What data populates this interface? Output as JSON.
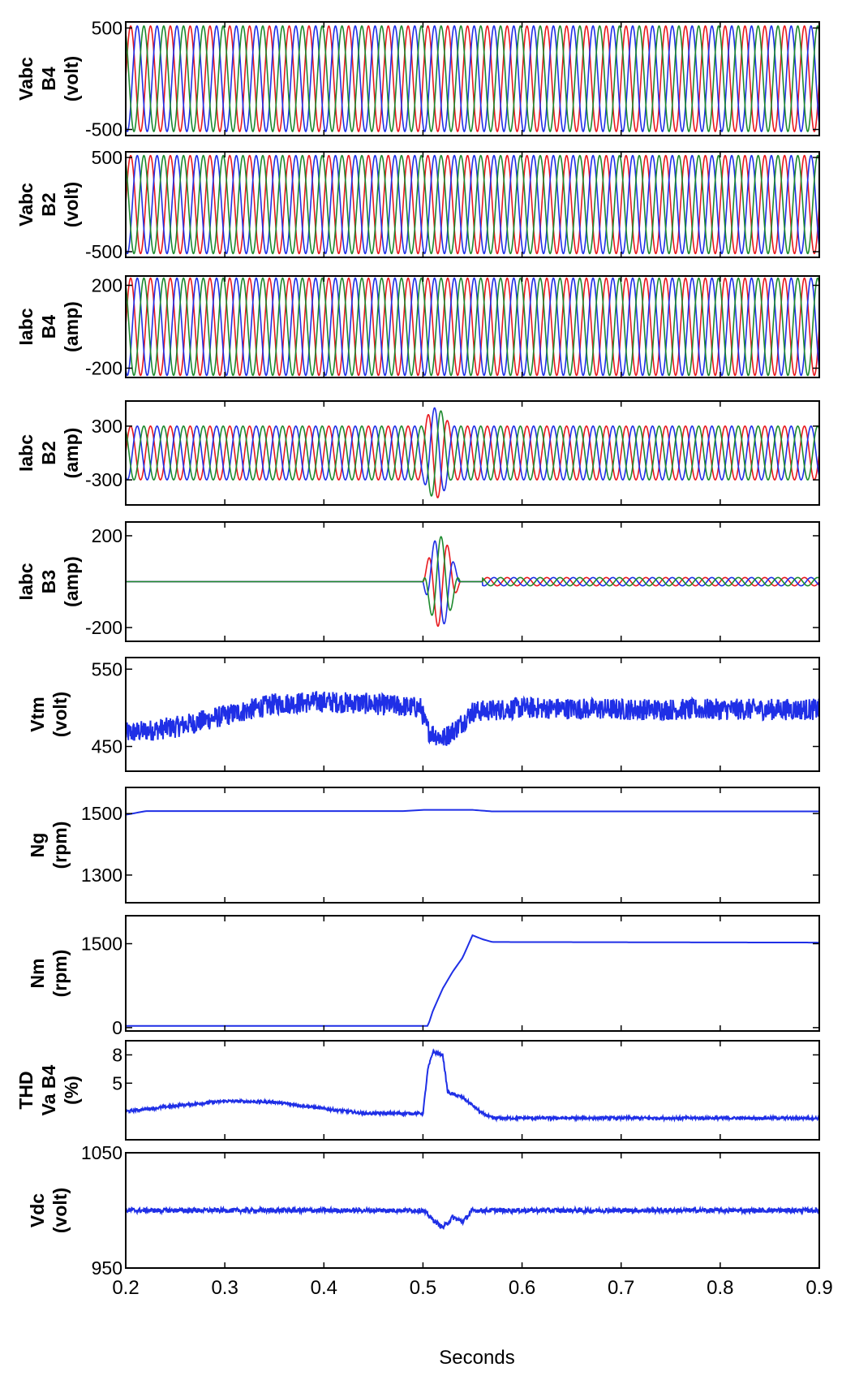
{
  "chart_data": {
    "type": "line",
    "xlabel": "Seconds",
    "xlim": [
      0.2,
      0.9
    ],
    "xticks": [
      "0.2",
      "0.3",
      "0.4",
      "0.5",
      "0.6",
      "0.7",
      "0.8",
      "0.9"
    ],
    "colors": {
      "phase_a": "#e8191e",
      "phase_b": "#1f2fe6",
      "phase_c": "#1d8a2e",
      "single": "#1f2fe6"
    },
    "panels": [
      {
        "id": "vabc-b4",
        "kind": "three_phase",
        "ylabel": [
          "Vabc",
          "B4",
          "(volt)"
        ],
        "ylim": [
          -560,
          560
        ],
        "yticks": [
          {
            "v": 500,
            "t": "500"
          },
          {
            "v": -500,
            "t": "-500"
          }
        ],
        "amplitude": 520,
        "frequency_hz": 50
      },
      {
        "id": "vabc-b2",
        "kind": "three_phase",
        "ylabel": [
          "Vabc",
          "B2",
          "(volt)"
        ],
        "ylim": [
          -560,
          560
        ],
        "yticks": [
          {
            "v": 500,
            "t": "500"
          },
          {
            "v": -500,
            "t": "-500"
          }
        ],
        "amplitude": 520,
        "frequency_hz": 50
      },
      {
        "id": "iabc-b4",
        "kind": "three_phase",
        "ylabel": [
          "Iabc",
          "B4",
          "(amp)"
        ],
        "ylim": [
          -245,
          245
        ],
        "yticks": [
          {
            "v": 200,
            "t": "200"
          },
          {
            "v": -200,
            "t": "-200"
          }
        ],
        "amplitude": 235,
        "frequency_hz": 50
      },
      {
        "id": "iabc-b2",
        "kind": "three_phase",
        "ylabel": [
          "Iabc",
          "B2",
          "(amp)"
        ],
        "ylim": [
          -580,
          580
        ],
        "yticks": [
          {
            "v": 300,
            "t": "300"
          },
          {
            "v": -300,
            "t": "-300"
          }
        ],
        "amplitude": 300,
        "frequency_hz": 50,
        "transient": {
          "t_start": 0.5,
          "t_end": 0.545,
          "peak": 550
        }
      },
      {
        "id": "iabc-b3",
        "kind": "three_phase",
        "ylabel": [
          "Iabc",
          "B3",
          "(amp)"
        ],
        "ylim": [
          -260,
          260
        ],
        "yticks": [
          {
            "v": 200,
            "t": "200"
          },
          {
            "v": -200,
            "t": "-200"
          }
        ],
        "amplitude": 0,
        "frequency_hz": 50,
        "transient": {
          "t_start": 0.5,
          "t_end": 0.56,
          "peak": 240
        },
        "after": {
          "t_start": 0.56,
          "amplitude": 18
        }
      },
      {
        "id": "vtm",
        "kind": "single",
        "ylabel": [
          "Vtm",
          "(volt)"
        ],
        "ylim": [
          418,
          565
        ],
        "yticks": [
          {
            "v": 550,
            "t": "550"
          },
          {
            "v": 450,
            "t": "450"
          }
        ],
        "points": [
          [
            0.2,
            467
          ],
          [
            0.25,
            475
          ],
          [
            0.3,
            490
          ],
          [
            0.35,
            505
          ],
          [
            0.4,
            508
          ],
          [
            0.45,
            505
          ],
          [
            0.498,
            500
          ],
          [
            0.502,
            480
          ],
          [
            0.506,
            470
          ],
          [
            0.52,
            460
          ],
          [
            0.535,
            475
          ],
          [
            0.55,
            495
          ],
          [
            0.6,
            500
          ],
          [
            0.7,
            498
          ],
          [
            0.8,
            498
          ],
          [
            0.9,
            498
          ]
        ],
        "noise": 14
      },
      {
        "id": "ng",
        "kind": "single",
        "ylabel": [
          "Ng",
          "(rpm)"
        ],
        "ylim": [
          1210,
          1585
        ],
        "yticks": [
          {
            "v": 1500,
            "t": "1500"
          },
          {
            "v": 1300,
            "t": "1300"
          }
        ],
        "points": [
          [
            0.2,
            1496
          ],
          [
            0.22,
            1508
          ],
          [
            0.48,
            1508
          ],
          [
            0.5,
            1512
          ],
          [
            0.55,
            1512
          ],
          [
            0.57,
            1507
          ],
          [
            0.9,
            1507
          ]
        ],
        "noise": 0
      },
      {
        "id": "nm",
        "kind": "single",
        "ylabel": [
          "Nm",
          "(rpm)"
        ],
        "ylim": [
          -60,
          2000
        ],
        "yticks": [
          {
            "v": 1500,
            "t": "1500"
          },
          {
            "v": 0,
            "t": "0"
          }
        ],
        "points": [
          [
            0.2,
            30
          ],
          [
            0.505,
            30
          ],
          [
            0.51,
            300
          ],
          [
            0.52,
            700
          ],
          [
            0.53,
            1000
          ],
          [
            0.54,
            1250
          ],
          [
            0.55,
            1650
          ],
          [
            0.56,
            1580
          ],
          [
            0.57,
            1530
          ],
          [
            0.9,
            1520
          ]
        ],
        "noise": 0
      },
      {
        "id": "thd",
        "kind": "single",
        "ylabel": [
          "THD",
          "Va B4",
          "(%)"
        ],
        "ylim": [
          -1,
          9.5
        ],
        "yticks": [
          {
            "v": 8,
            "t": "8"
          },
          {
            "v": 5,
            "t": "5"
          }
        ],
        "points": [
          [
            0.2,
            2.0
          ],
          [
            0.25,
            2.6
          ],
          [
            0.3,
            3.1
          ],
          [
            0.35,
            3.0
          ],
          [
            0.4,
            2.3
          ],
          [
            0.44,
            1.8
          ],
          [
            0.5,
            1.8
          ],
          [
            0.505,
            6.5
          ],
          [
            0.51,
            8.3
          ],
          [
            0.52,
            8.0
          ],
          [
            0.525,
            4.0
          ],
          [
            0.54,
            3.5
          ],
          [
            0.56,
            1.8
          ],
          [
            0.57,
            1.3
          ],
          [
            0.9,
            1.3
          ]
        ],
        "noise": 0.15
      },
      {
        "id": "vdc",
        "kind": "single",
        "ylabel": [
          "Vdc",
          "(volt)"
        ],
        "ylim": [
          950,
          1050
        ],
        "yticks": [
          {
            "v": 1050,
            "t": "1050"
          },
          {
            "v": 950,
            "t": "950"
          }
        ],
        "points": [
          [
            0.2,
            1000
          ],
          [
            0.5,
            1000
          ],
          [
            0.51,
            992
          ],
          [
            0.52,
            985
          ],
          [
            0.53,
            994
          ],
          [
            0.54,
            990
          ],
          [
            0.55,
            1000
          ],
          [
            0.9,
            1000
          ]
        ],
        "noise": 2
      }
    ]
  }
}
